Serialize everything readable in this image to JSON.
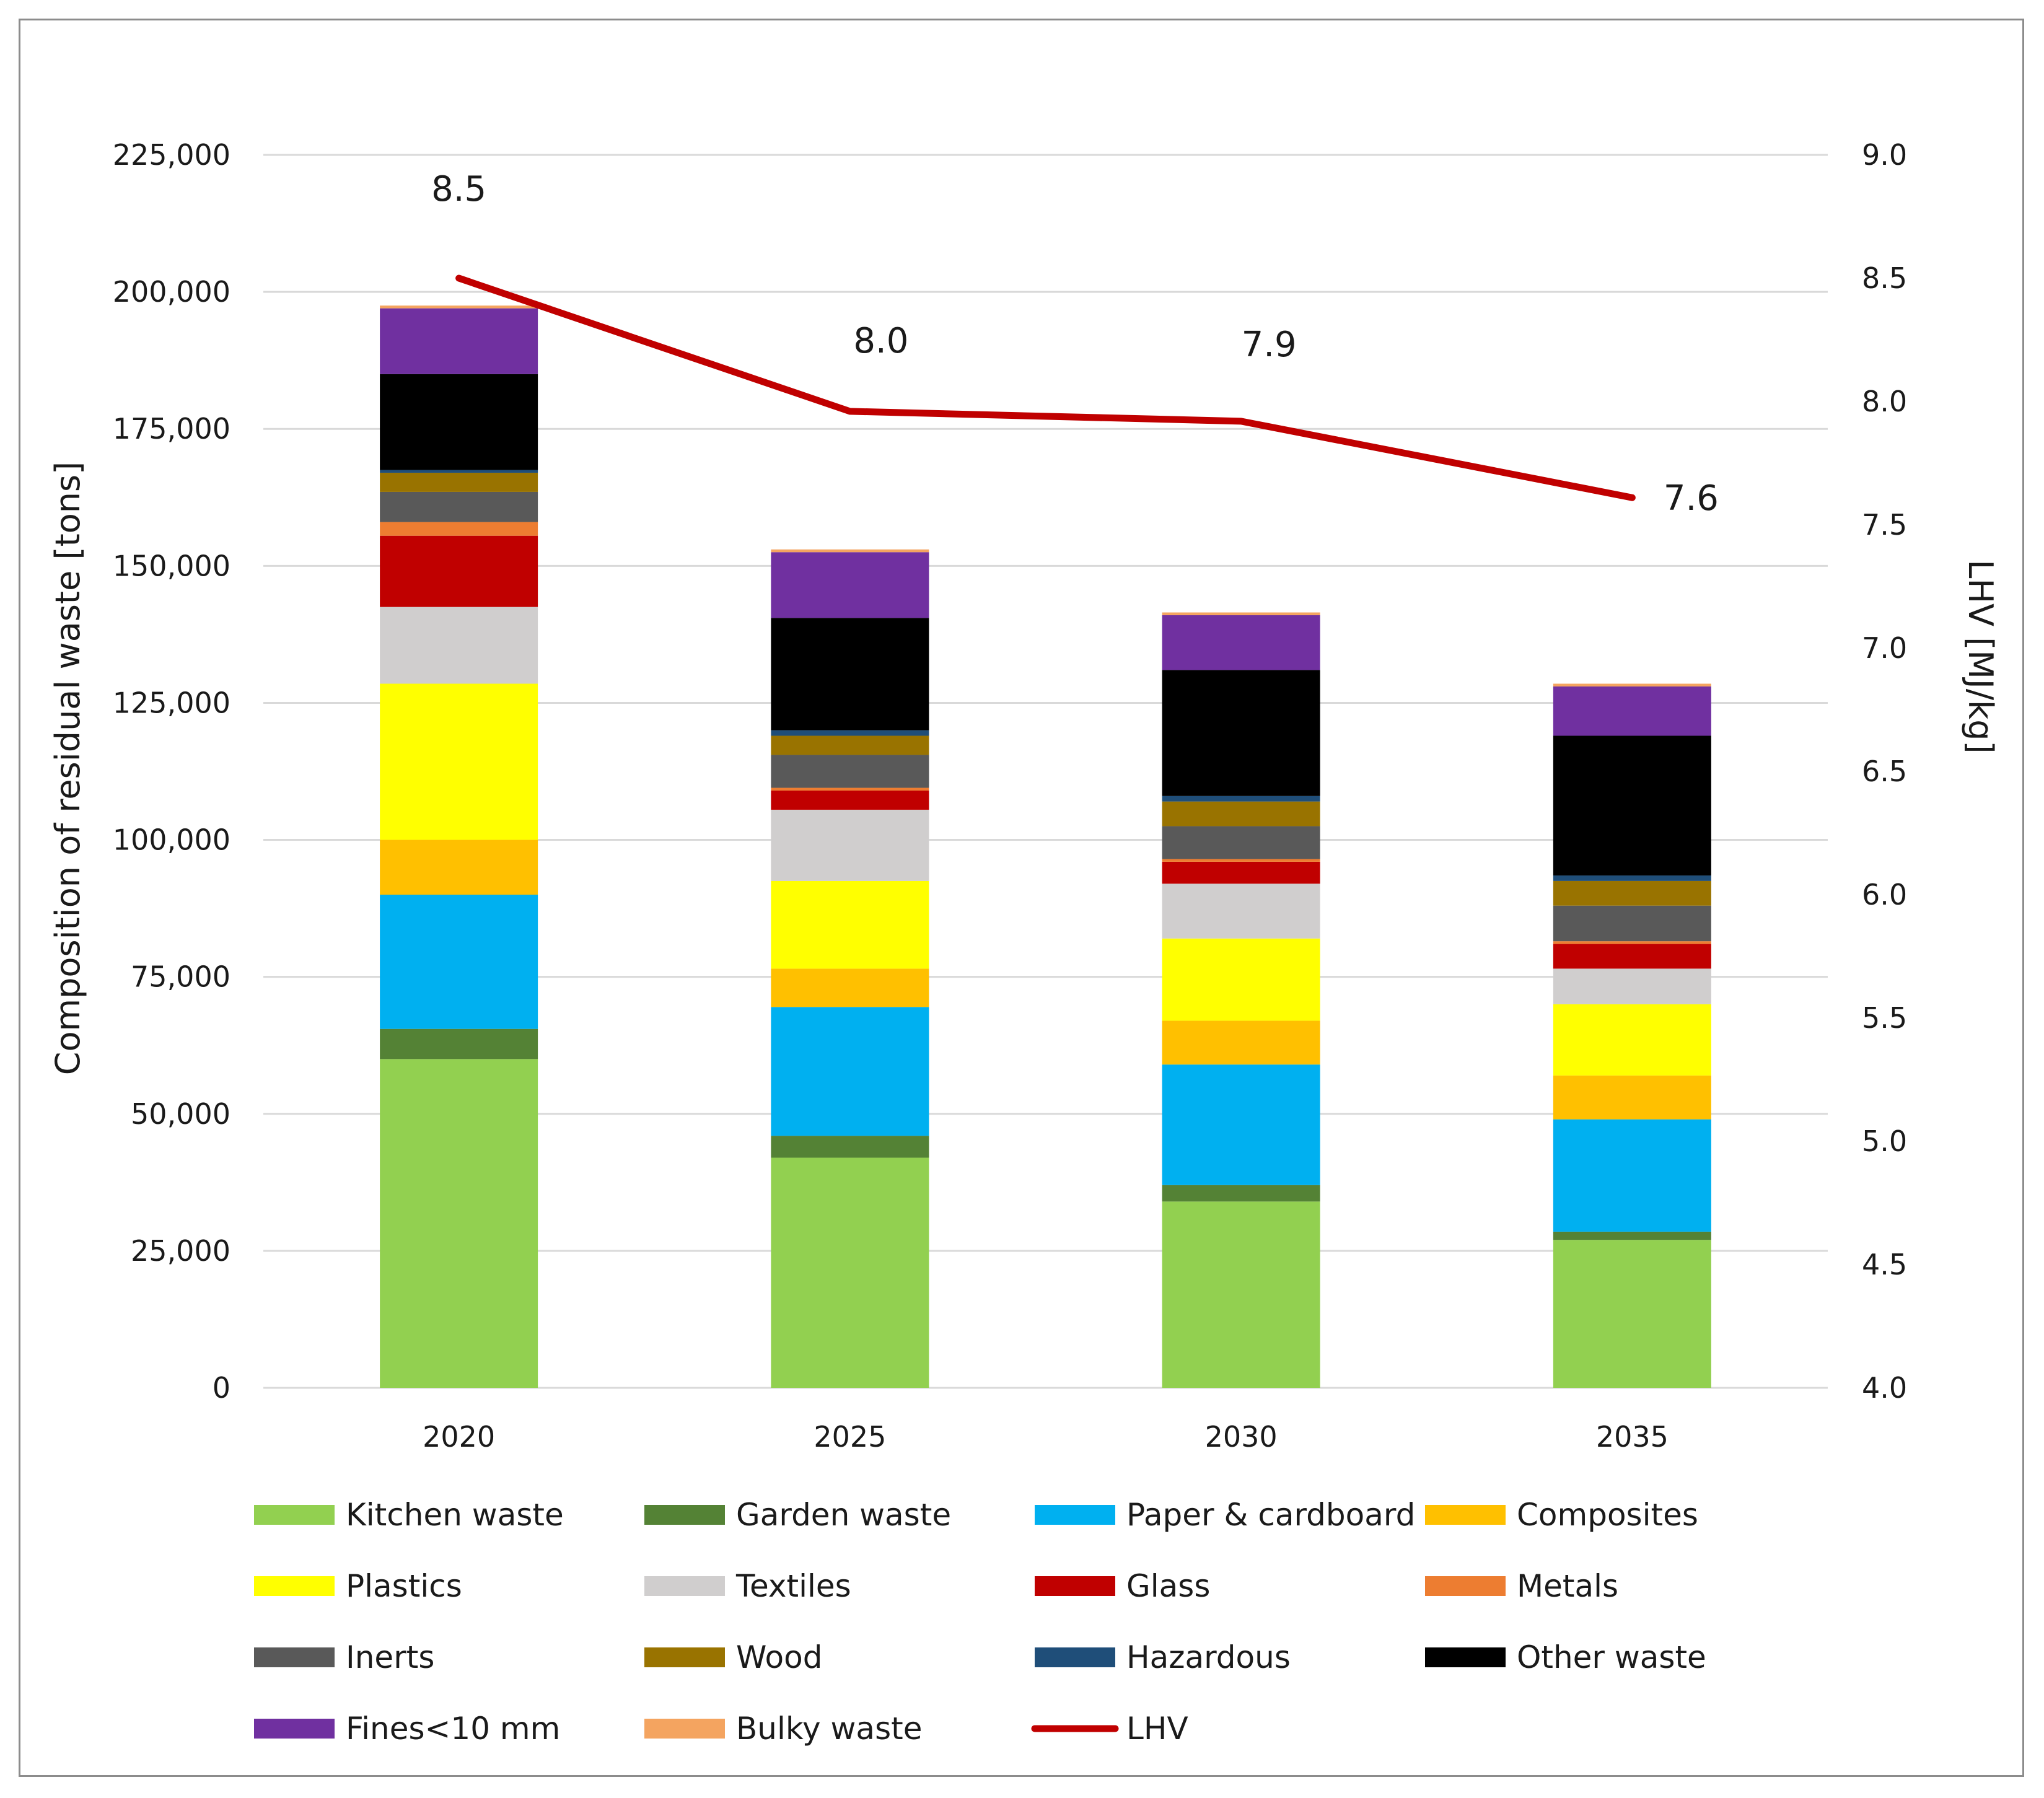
{
  "chart_data": {
    "type": "bar",
    "stacked": true,
    "categories": [
      "2020",
      "2025",
      "2030",
      "2035"
    ],
    "ylabel": "Composition of residual waste [tons]",
    "y2label": "LHV [MJ/kg]",
    "ylim": [
      0,
      225000
    ],
    "y2lim": [
      4.0,
      9.0
    ],
    "yticks": [
      "0",
      "25,000",
      "50,000",
      "75,000",
      "100,000",
      "125,000",
      "150,000",
      "175,000",
      "200,000",
      "225,000"
    ],
    "y2ticks": [
      "4.0",
      "4.5",
      "5.0",
      "5.5",
      "6.0",
      "6.5",
      "7.0",
      "7.5",
      "8.0",
      "8.5",
      "9.0"
    ],
    "series": [
      {
        "name": "Kitchen waste",
        "color": "#92d050",
        "values": [
          60000,
          42000,
          34000,
          27000
        ]
      },
      {
        "name": "Garden waste",
        "color": "#548235",
        "values": [
          5500,
          4000,
          3000,
          1500
        ]
      },
      {
        "name": "Paper & cardboard",
        "color": "#00b0f0",
        "values": [
          24500,
          23500,
          22000,
          20500
        ]
      },
      {
        "name": "Composites",
        "color": "#ffc000",
        "values": [
          10000,
          7000,
          8000,
          8000
        ]
      },
      {
        "name": "Plastics",
        "color": "#ffff00",
        "values": [
          28500,
          16000,
          15000,
          13000
        ]
      },
      {
        "name": "Textiles",
        "color": "#d0cece",
        "values": [
          14000,
          13000,
          10000,
          6500
        ]
      },
      {
        "name": "Glass",
        "color": "#c00000",
        "values": [
          13000,
          3500,
          4000,
          4500
        ]
      },
      {
        "name": "Metals",
        "color": "#ed7d31",
        "values": [
          2500,
          500,
          500,
          500
        ]
      },
      {
        "name": "Inerts",
        "color": "#595959",
        "values": [
          5500,
          6000,
          6000,
          6500
        ]
      },
      {
        "name": "Wood",
        "color": "#997300",
        "values": [
          3500,
          3500,
          4500,
          4500
        ]
      },
      {
        "name": "Hazardous",
        "color": "#1f4e79",
        "values": [
          500,
          1000,
          1000,
          1000
        ]
      },
      {
        "name": "Other waste",
        "color": "#000000",
        "values": [
          17500,
          20500,
          23000,
          25500
        ]
      },
      {
        "name": "Fines<10 mm",
        "color": "#7030a0",
        "values": [
          12000,
          12000,
          10000,
          9000
        ]
      },
      {
        "name": "Bulky waste",
        "color": "#f4a460",
        "values": [
          500,
          500,
          500,
          500
        ]
      }
    ],
    "line": {
      "name": "LHV",
      "color": "#c00000",
      "values": [
        8.5,
        7.96,
        7.92,
        7.61
      ],
      "labels": [
        "8.5",
        "8.0",
        "7.9",
        "7.6"
      ]
    }
  }
}
